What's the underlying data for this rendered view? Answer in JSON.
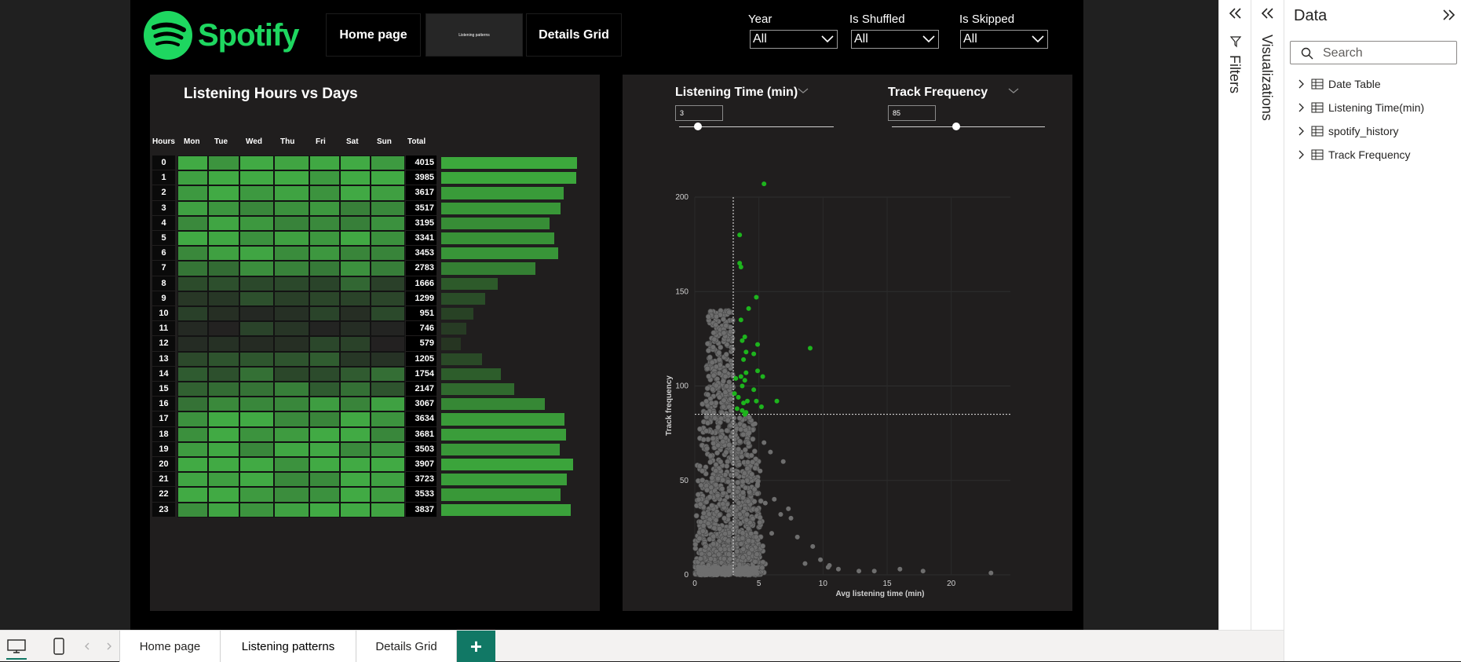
{
  "header": {
    "logo_text": "Spotify",
    "nav": [
      {
        "label": "Home page"
      },
      {
        "label": "Listening patterns"
      },
      {
        "label": "Details Grid"
      }
    ]
  },
  "slicers": [
    {
      "label": "Year",
      "value": "All"
    },
    {
      "label": "Is Shuffled",
      "value": "All"
    },
    {
      "label": "Is Skipped",
      "value": "All"
    }
  ],
  "heatmap": {
    "title": "Listening Hours vs Days",
    "columns": [
      "Hours",
      "Mon",
      "Tue",
      "Wed",
      "Thu",
      "Fri",
      "Sat",
      "Sun",
      "Total"
    ],
    "hours": [
      "0",
      "1",
      "2",
      "3",
      "4",
      "5",
      "6",
      "7",
      "8",
      "9",
      "10",
      "11",
      "12",
      "13",
      "14",
      "15",
      "16",
      "17",
      "18",
      "19",
      "20",
      "21",
      "22",
      "23"
    ],
    "totals": [
      "4015",
      "3985",
      "3617",
      "3517",
      "3195",
      "3341",
      "3453",
      "2783",
      "1666",
      "1299",
      "951",
      "746",
      "579",
      "1205",
      "1754",
      "2147",
      "3067",
      "3634",
      "3681",
      "3503",
      "3907",
      "3723",
      "3533",
      "3837"
    ],
    "total_values": [
      4015,
      3985,
      3617,
      3517,
      3195,
      3341,
      3453,
      2783,
      1666,
      1299,
      951,
      746,
      579,
      1205,
      1754,
      2147,
      3067,
      3634,
      3681,
      3503,
      3907,
      3723,
      3533,
      3837
    ]
  },
  "parameters": [
    {
      "label": "Listening Time (min)",
      "value": "3",
      "slider_fraction": 0.12
    },
    {
      "label": "Track Frequency",
      "value": "85",
      "slider_fraction": 0.42
    }
  ],
  "chart_data": {
    "type": "scatter",
    "xlabel": "Avg listening time (min)",
    "ylabel": "Track frequency",
    "xlim": [
      0,
      24
    ],
    "ylim": [
      0,
      200
    ],
    "xticks": [
      "0",
      "5",
      "10",
      "15",
      "20"
    ],
    "yticks": [
      "0",
      "50",
      "100",
      "150",
      "200"
    ],
    "reference_x": 3,
    "reference_y": 85,
    "highlight_color": "#1db41d",
    "base_color": "#6e6e6e",
    "highlighted_points": [
      [
        5.4,
        207
      ],
      [
        3.5,
        180
      ],
      [
        3.5,
        165
      ],
      [
        3.6,
        163
      ],
      [
        4.8,
        147
      ],
      [
        3.6,
        135
      ],
      [
        4.2,
        141
      ],
      [
        3.9,
        126
      ],
      [
        3.7,
        124
      ],
      [
        4.0,
        118
      ],
      [
        3.8,
        114
      ],
      [
        4.9,
        122
      ],
      [
        4.6,
        117
      ],
      [
        9.0,
        120
      ],
      [
        4.0,
        107
      ],
      [
        3.6,
        105
      ],
      [
        3.2,
        104
      ],
      [
        5.3,
        105
      ],
      [
        4.9,
        108
      ],
      [
        3.9,
        103
      ],
      [
        3.7,
        100
      ],
      [
        4.6,
        98
      ],
      [
        4.8,
        92
      ],
      [
        3.1,
        96
      ],
      [
        3.4,
        94
      ],
      [
        3.8,
        91
      ],
      [
        4.1,
        92
      ],
      [
        5.2,
        89
      ],
      [
        6.4,
        92
      ],
      [
        3.3,
        88
      ],
      [
        3.7,
        87
      ],
      [
        4.0,
        86
      ],
      [
        3.9,
        85
      ]
    ],
    "grey_points": [
      [
        8.6,
        6
      ],
      [
        10.4,
        4
      ],
      [
        12.8,
        2
      ],
      [
        14.0,
        2
      ],
      [
        16.0,
        3
      ],
      [
        17.8,
        2
      ],
      [
        23.1,
        1
      ],
      [
        7.5,
        30
      ],
      [
        6.2,
        40
      ],
      [
        6.7,
        32
      ],
      [
        5.4,
        70
      ],
      [
        6.9,
        60
      ],
      [
        5.9,
        65
      ],
      [
        7.3,
        35
      ],
      [
        8.0,
        20
      ],
      [
        9.2,
        15
      ],
      [
        10.5,
        5
      ],
      [
        11.2,
        3
      ],
      [
        9.8,
        8
      ],
      [
        4.7,
        80
      ],
      [
        4.2,
        75
      ],
      [
        5.1,
        55
      ],
      [
        4.9,
        48
      ],
      [
        5.5,
        38
      ],
      [
        6.0,
        22
      ]
    ]
  },
  "panes": {
    "filters_label": "Filters",
    "visualizations_label": "Visualizations",
    "data_title": "Data",
    "search_placeholder": "Search",
    "data_items": [
      {
        "label": "Date Table"
      },
      {
        "label": "Listening Time(min)"
      },
      {
        "label": "spotify_history"
      },
      {
        "label": "Track Frequency"
      }
    ]
  },
  "tabs": [
    {
      "label": "Home page"
    },
    {
      "label": "Listening patterns"
    },
    {
      "label": "Details Grid"
    }
  ],
  "colors": {
    "spotify_green": "#1ed760",
    "accent_teal": "#117865"
  }
}
